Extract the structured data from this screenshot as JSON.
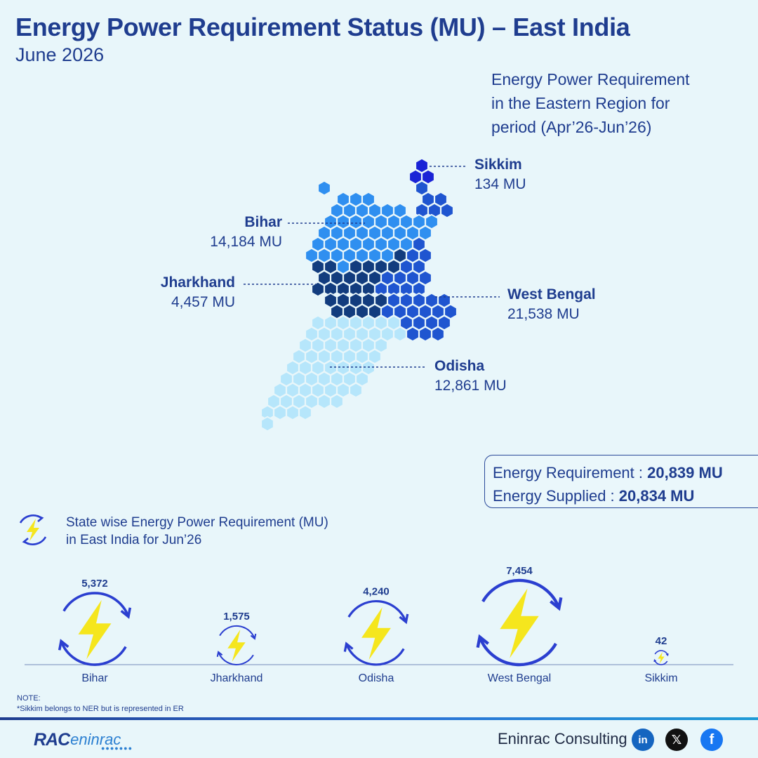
{
  "header": {
    "title": "Energy Power Requirement Status (MU) – East India",
    "subtitle": "June 2026"
  },
  "map_caption": {
    "line1": "Energy Power Requirement",
    "line2": "in the Eastern Region for",
    "line3": "period (Apr’26-Jun’26)"
  },
  "map_states": [
    {
      "name": "Sikkim",
      "value": "134 MU",
      "color": "#1a23d6"
    },
    {
      "name": "Bihar",
      "value": "14,184 MU",
      "color": "#2f8ff0"
    },
    {
      "name": "Jharkhand",
      "value": "4,457 MU",
      "color": "#123c7e"
    },
    {
      "name": "West Bengal",
      "value": "21,538 MU",
      "color": "#1f55d0"
    },
    {
      "name": "Odisha",
      "value": "12,861 MU",
      "color": "#b6e6fb"
    }
  ],
  "totals": {
    "requirement_label": "Energy Requirement : ",
    "requirement_value": "20,839 MU",
    "supplied_label": "Energy Supplied : ",
    "supplied_value": "20,834 MU"
  },
  "section": {
    "line1": "State wise Energy Power Requirement (MU)",
    "line2": "in East India for Jun’26"
  },
  "chart_data": {
    "type": "bubble",
    "title": "State wise Energy Power Requirement (MU) in East India for Jun’26",
    "categories": [
      "Bihar",
      "Jharkhand",
      "Odisha",
      "West Bengal",
      "Sikkim"
    ],
    "values": [
      5372,
      1575,
      4240,
      7454,
      42
    ],
    "value_labels": [
      "5,372",
      "1,575",
      "4,240",
      "7,454",
      "42"
    ],
    "unit": "MU"
  },
  "note": {
    "heading": "NOTE:",
    "text": "*Sikkim belongs to NER but is represented in ER"
  },
  "footer": {
    "logo_primary": "RAC",
    "logo_secondary": "eninrac",
    "company": "Eninrac Consulting",
    "social": [
      "linkedin-icon",
      "x-icon",
      "facebook-icon"
    ]
  },
  "colors": {
    "title": "#1f3d8f",
    "ring": "#2b3fd0",
    "bolt": "#f5e61d",
    "baseline": "#8aa0c8"
  }
}
